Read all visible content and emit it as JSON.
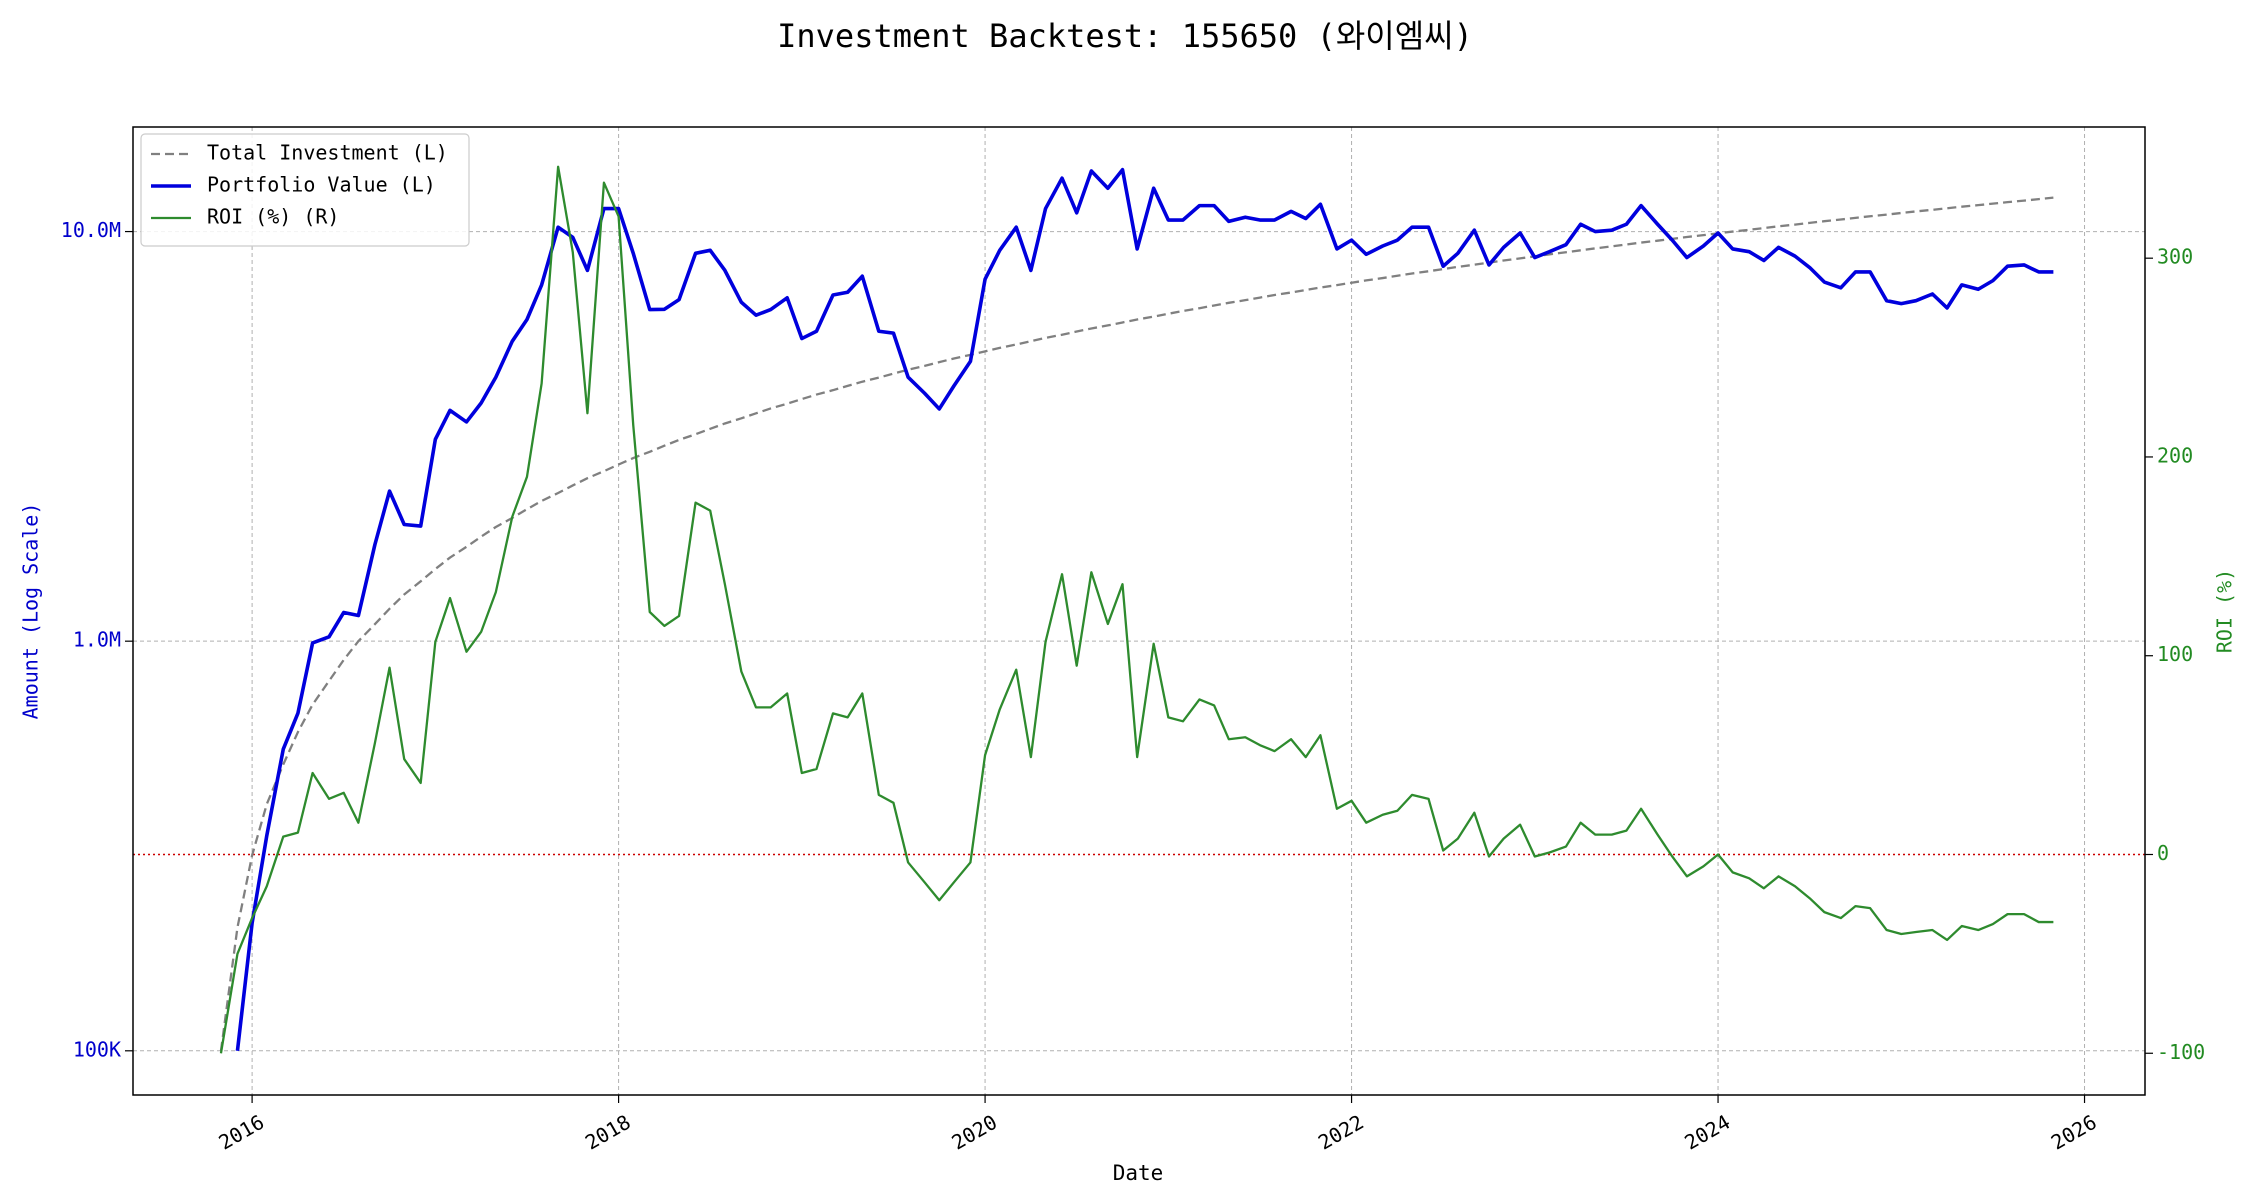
{
  "chart_data": {
    "type": "line",
    "title": "Investment Backtest: 155650 (와이엠씨)",
    "x_label": "Date",
    "y_label": "Amount (Log Scale)",
    "y2_label": "ROI (%)",
    "y_scale": "log",
    "grid": true,
    "legend": "upper left",
    "xlim": [
      2015.35,
      2026.33
    ],
    "xticks": [
      2016,
      2018,
      2020,
      2022,
      2024,
      2026
    ],
    "ylim": [
      78000,
      18000000
    ],
    "yticks": [
      {
        "value": 100000,
        "label": "100K"
      },
      {
        "value": 1000000,
        "label": "1.0M"
      },
      {
        "value": 10000000,
        "label": "10.0M"
      }
    ],
    "y_color": "#0000cc",
    "y2lim": [
      -121,
      366
    ],
    "y2ticks": [
      -100,
      0,
      100,
      200,
      300
    ],
    "y2_color": "#228b22",
    "reference_line": {
      "value": 0,
      "axis": "y2",
      "color": "#cc0000"
    },
    "x": [
      2015.83,
      2015.92,
      2016.0,
      2016.08,
      2016.17,
      2016.25,
      2016.33,
      2016.42,
      2016.5,
      2016.58,
      2016.67,
      2016.75,
      2016.83,
      2016.92,
      2017.0,
      2017.08,
      2017.17,
      2017.25,
      2017.33,
      2017.42,
      2017.5,
      2017.58,
      2017.67,
      2017.75,
      2017.83,
      2017.92,
      2018.0,
      2018.08,
      2018.17,
      2018.25,
      2018.33,
      2018.42,
      2018.5,
      2018.58,
      2018.67,
      2018.75,
      2018.83,
      2018.92,
      2019.0,
      2019.08,
      2019.17,
      2019.25,
      2019.33,
      2019.42,
      2019.5,
      2019.58,
      2019.67,
      2019.75,
      2019.83,
      2019.92,
      2020.0,
      2020.08,
      2020.17,
      2020.25,
      2020.33,
      2020.42,
      2020.5,
      2020.58,
      2020.67,
      2020.75,
      2020.83,
      2020.92,
      2021.0,
      2021.08,
      2021.17,
      2021.25,
      2021.33,
      2021.42,
      2021.5,
      2021.58,
      2021.67,
      2021.75,
      2021.83,
      2021.92,
      2022.0,
      2022.08,
      2022.17,
      2022.25,
      2022.33,
      2022.42,
      2022.5,
      2022.58,
      2022.67,
      2022.75,
      2022.83,
      2022.92,
      2023.0,
      2023.08,
      2023.17,
      2023.25,
      2023.33,
      2023.42,
      2023.5,
      2023.58,
      2023.67,
      2023.75,
      2023.83,
      2023.92,
      2024.0,
      2024.08,
      2024.17,
      2024.25,
      2024.33,
      2024.42,
      2024.5,
      2024.58,
      2024.67,
      2024.75,
      2024.83,
      2024.92,
      2025.0,
      2025.08,
      2025.17,
      2025.25,
      2025.33,
      2025.42,
      2025.5,
      2025.58,
      2025.67,
      2025.75,
      2025.83
    ],
    "series": [
      {
        "name": "Total Investment (L)",
        "color": "#808080",
        "dash": true,
        "axis": "y",
        "values": [
          100000,
          200000,
          300000,
          400000,
          500000,
          600000,
          700000,
          800000,
          900000,
          1000000,
          1100000,
          1200000,
          1300000,
          1400000,
          1500000,
          1600000,
          1700000,
          1800000,
          1900000,
          2000000,
          2100000,
          2200000,
          2300000,
          2400000,
          2500000,
          2600000,
          2700000,
          2800000,
          2900000,
          3000000,
          3100000,
          3200000,
          3300000,
          3400000,
          3500000,
          3600000,
          3700000,
          3800000,
          3900000,
          4000000,
          4100000,
          4200000,
          4300000,
          4400000,
          4500000,
          4600000,
          4700000,
          4800000,
          4900000,
          5000000,
          5100000,
          5200000,
          5300000,
          5400000,
          5500000,
          5600000,
          5700000,
          5800000,
          5900000,
          6000000,
          6100000,
          6200000,
          6300000,
          6400000,
          6500000,
          6600000,
          6700000,
          6800000,
          6900000,
          7000000,
          7100000,
          7200000,
          7300000,
          7400000,
          7500000,
          7600000,
          7700000,
          7800000,
          7900000,
          8000000,
          8100000,
          8200000,
          8300000,
          8400000,
          8500000,
          8600000,
          8700000,
          8800000,
          8900000,
          9000000,
          9100000,
          9200000,
          9300000,
          9400000,
          9500000,
          9600000,
          9700000,
          9800000,
          9900000,
          10000000,
          10100000,
          10200000,
          10300000,
          10400000,
          10500000,
          10600000,
          10700000,
          10800000,
          10900000,
          11000000,
          11100000,
          11200000,
          11300000,
          11400000,
          11500000,
          11600000,
          11700000,
          11800000,
          11900000,
          12000000,
          12100000
        ]
      },
      {
        "name": "Portfolio Value (L)",
        "color": "#0000dd",
        "axis": "y",
        "values": [
          null,
          100000,
          205000,
          335000,
          545000,
          667000,
          990000,
          1025000,
          1175000,
          1155000,
          1720000,
          2325000,
          1927000,
          1910000,
          3110000,
          3660000,
          3430000,
          3815000,
          4410000,
          5400000,
          6100000,
          7410000,
          10250000,
          9680000,
          8040000,
          11380000,
          11380000,
          8850000,
          6450000,
          6460000,
          6820000,
          8850000,
          9000000,
          8040000,
          6720000,
          6250000,
          6450000,
          6890000,
          5480000,
          5710000,
          7000000,
          7110000,
          7780000,
          5710000,
          5650000,
          4410000,
          4030000,
          3690000,
          4200000,
          4820000,
          7650000,
          9000000,
          10250000,
          8040000,
          11380000,
          13500000,
          11110000,
          14060000,
          12760000,
          14160000,
          9070000,
          12760000,
          10670000,
          10670000,
          11570000,
          11570000,
          10590000,
          10840000,
          10670000,
          10670000,
          11200000,
          10760000,
          11660000,
          9070000,
          9530000,
          8800000,
          9220000,
          9530000,
          10250000,
          10250000,
          8230000,
          8850000,
          10080000,
          8290000,
          9150000,
          9920000,
          8640000,
          8930000,
          9290000,
          10420000,
          10000000,
          10080000,
          10420000,
          11570000,
          10420000,
          9530000,
          8640000,
          9220000,
          9920000,
          9070000,
          8930000,
          8500000,
          9150000,
          8710000,
          8170000,
          7530000,
          7290000,
          7970000,
          7970000,
          6780000,
          6670000,
          6780000,
          7040000,
          6510000,
          7410000,
          7230000,
          7590000,
          8230000,
          8290000,
          7970000,
          7970000
        ]
      },
      {
        "name": "ROI (%) (R)",
        "color": "#2e8b2e",
        "axis": "y2",
        "values": [
          -100,
          -50,
          -32,
          -16,
          9,
          11,
          41,
          28,
          31,
          16,
          56,
          94,
          48,
          36,
          107,
          129,
          102,
          112,
          132,
          170,
          190,
          237,
          346,
          303,
          222,
          338,
          321,
          216,
          122,
          115,
          120,
          177,
          173,
          136,
          92,
          74,
          74,
          81,
          41,
          43,
          71,
          69,
          81,
          30,
          26,
          -4,
          -14,
          -23,
          -14,
          -4,
          50,
          73,
          93,
          49,
          107,
          141,
          95,
          142,
          116,
          136,
          49,
          106,
          69,
          67,
          78,
          75,
          58,
          59,
          55,
          52,
          58,
          49,
          60,
          23,
          27,
          16,
          20,
          22,
          30,
          28,
          2,
          8,
          21,
          -1,
          8,
          15,
          -1,
          1,
          4,
          16,
          10,
          10,
          12,
          23,
          10,
          -1,
          -11,
          -6,
          0,
          -9,
          -12,
          -17,
          -11,
          -16,
          -22,
          -29,
          -32,
          -26,
          -27,
          -38,
          -40,
          -39,
          -38,
          -43,
          -36,
          -38,
          -35,
          -30,
          -30,
          -34,
          -34
        ]
      }
    ]
  }
}
